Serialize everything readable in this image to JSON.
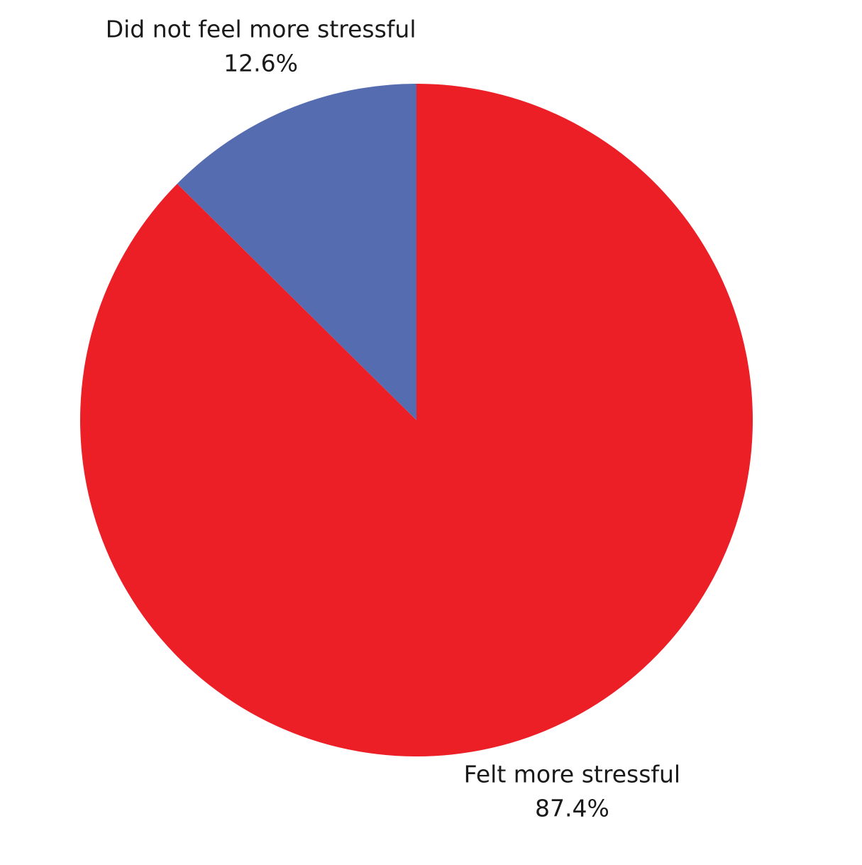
{
  "chart_data": {
    "type": "pie",
    "categories": [
      "Felt more stressful",
      "Did not feel more stressful"
    ],
    "values": [
      87.4,
      12.6
    ],
    "value_labels": [
      "87.4%",
      "12.6%"
    ],
    "colors": [
      "#ec1e26",
      "#566cb1"
    ]
  }
}
